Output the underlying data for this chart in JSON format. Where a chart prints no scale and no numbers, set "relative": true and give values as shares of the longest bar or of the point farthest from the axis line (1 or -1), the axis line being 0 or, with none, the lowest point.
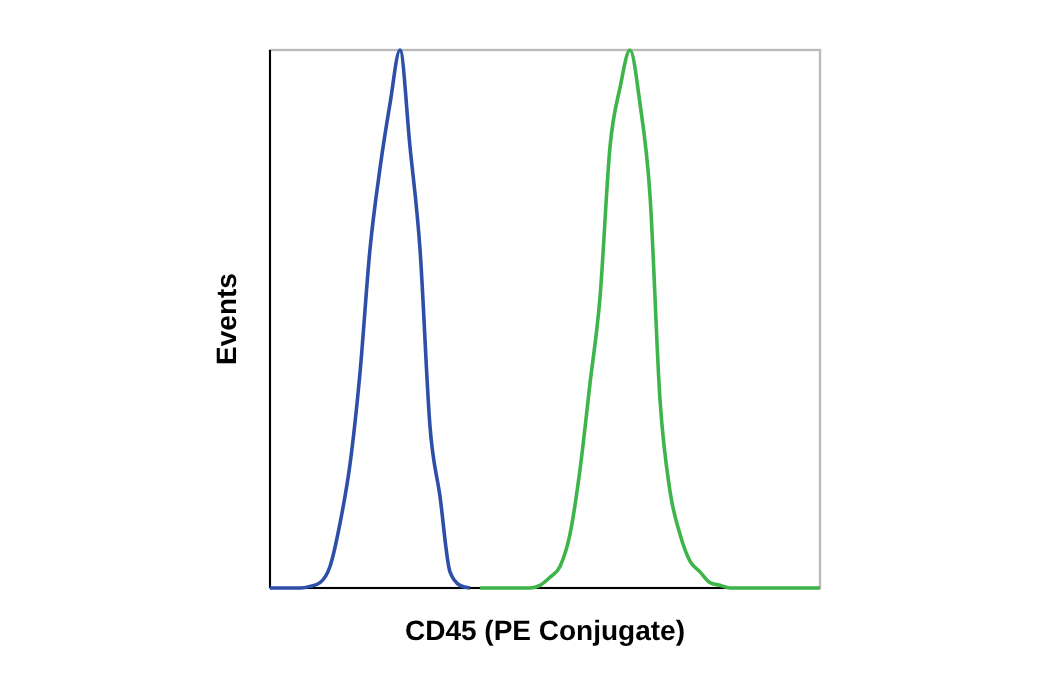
{
  "chart_data": {
    "type": "line",
    "relative": true,
    "xlabel": "CD45 (PE Conjugate)",
    "ylabel": "Events",
    "grid": false,
    "legend": false,
    "marker": "none",
    "line_style": "solid",
    "categories": [
      null,
      null,
      null,
      null,
      null,
      null,
      null,
      null,
      null,
      null,
      null,
      null,
      null,
      null,
      null,
      null,
      null,
      null,
      null,
      null,
      null,
      null,
      null,
      null,
      null,
      null,
      null,
      null,
      null,
      null,
      null,
      null,
      null,
      null,
      null,
      null,
      null,
      null,
      null,
      null,
      null,
      null,
      null,
      null,
      null,
      null,
      null,
      null,
      null,
      null,
      null,
      null,
      null,
      null,
      null,
      null
    ],
    "series": [
      {
        "color": "#2e4fa8",
        "values": [
          0,
          0,
          0,
          0,
          0.003,
          0.01,
          0.04,
          0.12,
          0.23,
          0.4,
          0.63,
          0.78,
          0.9,
          1,
          0.82,
          0.63,
          0.3,
          0.17,
          0.03,
          0.005,
          0,
          null,
          null,
          null,
          null,
          null,
          null,
          null,
          null,
          null,
          null,
          null,
          null,
          null,
          null,
          null,
          null,
          null,
          null,
          null,
          null,
          null,
          null,
          null,
          null,
          null,
          null,
          null,
          null,
          null,
          null,
          null,
          null,
          null,
          null,
          null
        ]
      },
      {
        "color": "#3db54a",
        "values": [
          null,
          null,
          null,
          null,
          null,
          null,
          null,
          null,
          null,
          null,
          null,
          null,
          null,
          null,
          null,
          null,
          null,
          null,
          null,
          null,
          null,
          0,
          0,
          0,
          0,
          0,
          0,
          0.005,
          0.02,
          0.04,
          0.1,
          0.22,
          0.38,
          0.54,
          0.82,
          0.93,
          1,
          0.9,
          0.73,
          0.35,
          0.18,
          0.1,
          0.05,
          0.03,
          0.01,
          0.005,
          0,
          0,
          0,
          0,
          0,
          0,
          0,
          0,
          0,
          0
        ]
      }
    ]
  }
}
